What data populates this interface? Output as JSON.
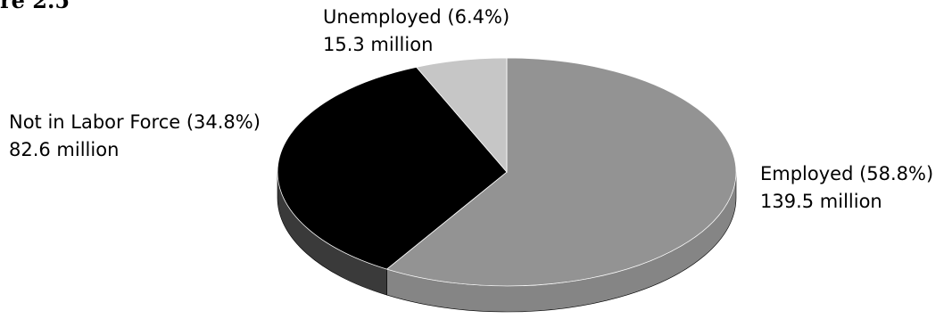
{
  "figure_label": "re 2.5",
  "chart_data": {
    "type": "pie",
    "style": "3d",
    "title": "",
    "slices": [
      {
        "label": "Employed (58.8%)",
        "value_text": "139.5 million",
        "percent": 58.8,
        "value": 139.5,
        "color": "#939393",
        "side_color": "#858585"
      },
      {
        "label": "Not in Labor Force (34.8%)",
        "value_text": "82.6 million",
        "percent": 34.8,
        "value": 82.6,
        "color": "#000000",
        "side_color": "#3a3a3a"
      },
      {
        "label": "Unemployed (6.4%)",
        "value_text": "15.3 million",
        "percent": 6.4,
        "value": 15.3,
        "color": "#c6c6c6",
        "side_color": "#a8a8a8"
      }
    ]
  }
}
